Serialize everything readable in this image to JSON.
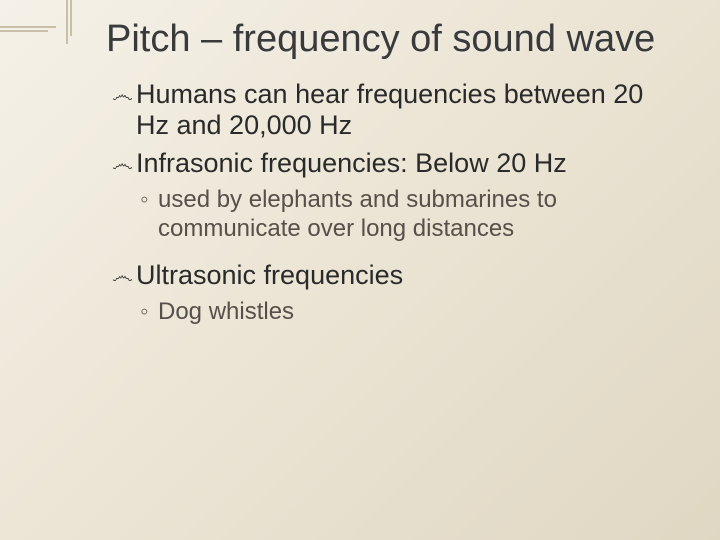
{
  "title": "Pitch – frequency of sound wave",
  "bullets": {
    "b1": "Humans can hear frequencies between  20 Hz and 20,000 Hz",
    "b2": "Infrasonic frequencies: Below 20 Hz",
    "b2_sub": "used by elephants and submarines to communicate over long distances",
    "b3": "Ultrasonic frequencies",
    "b3_sub": "Dog whistles"
  },
  "glyphs": {
    "level1": "෴",
    "level2": "◦"
  },
  "colors": {
    "bg_start": "#f5f1e8",
    "bg_end": "#e0d7c3",
    "title": "#3a3a3a",
    "body": "#2a2a2a",
    "sub": "#555049",
    "deco": "#c9bfa8"
  },
  "typography": {
    "title_fontsize": 38,
    "bullet1_fontsize": 27,
    "bullet2_fontsize": 24,
    "font_family": "Arial"
  }
}
